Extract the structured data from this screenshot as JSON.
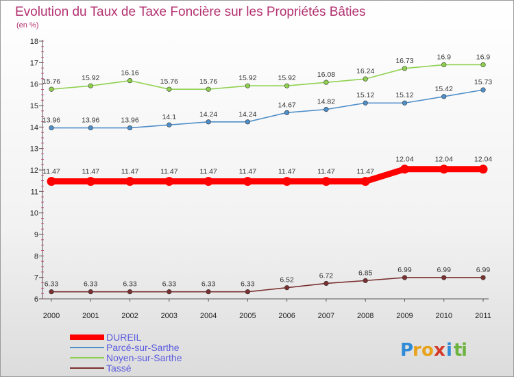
{
  "chart_data": {
    "type": "line",
    "title": "Evolution du Taux de Taxe Foncière sur les Propriétés Bâties",
    "subtitle": "(en %)",
    "x": [
      "2000",
      "2001",
      "2002",
      "2003",
      "2004",
      "2005",
      "2006",
      "2007",
      "2008",
      "2009",
      "2010",
      "2011"
    ],
    "yticks": [
      "6",
      "7",
      "8",
      "9",
      "10",
      "11",
      "12",
      "13",
      "14",
      "15",
      "16",
      "17",
      "18"
    ],
    "ylim": [
      6,
      18
    ],
    "grid": false,
    "legend_position": "bottom-left",
    "series": [
      {
        "name": "DUREIL",
        "color": "#ff0000",
        "values": [
          11.47,
          11.47,
          11.47,
          11.47,
          11.47,
          11.47,
          11.47,
          11.47,
          11.47,
          12.04,
          12.04,
          12.04
        ],
        "labels": [
          "11.47",
          "11.47",
          "11.47",
          "11.47",
          "11.47",
          "11.47",
          "11.47",
          "11.47",
          "11.47",
          "12.04",
          "12.04",
          "12.04"
        ]
      },
      {
        "name": "Parcé-sur-Sarthe",
        "color": "#4f8fc9",
        "values": [
          13.96,
          13.96,
          13.96,
          14.1,
          14.24,
          14.24,
          14.67,
          14.82,
          15.12,
          15.12,
          15.42,
          15.73
        ],
        "labels": [
          "13.96",
          "13.96",
          "13.96",
          "14.1",
          "14.24",
          "14.24",
          "14.67",
          "14.82",
          "15.12",
          "15.12",
          "15.42",
          "15.73"
        ]
      },
      {
        "name": "Noyen-sur-Sarthe",
        "color": "#8fd14f",
        "values": [
          15.76,
          15.92,
          16.16,
          15.76,
          15.76,
          15.92,
          15.92,
          16.08,
          16.24,
          16.73,
          16.9,
          16.9
        ],
        "labels": [
          "15.76",
          "15.92",
          "16.16",
          "15.76",
          "15.76",
          "15.92",
          "15.92",
          "16.08",
          "16.24",
          "16.73",
          "16.9",
          "16.9"
        ]
      },
      {
        "name": "Tassé",
        "color": "#7a3030",
        "values": [
          6.33,
          6.33,
          6.33,
          6.33,
          6.33,
          6.33,
          6.52,
          6.72,
          6.85,
          6.99,
          6.99,
          6.99
        ],
        "labels": [
          "6.33",
          "6.33",
          "6.33",
          "6.33",
          "6.33",
          "6.33",
          "6.52",
          "6.72",
          "6.85",
          "6.99",
          "6.99",
          "6.99"
        ]
      }
    ]
  },
  "legend": {
    "text_color": "#5a5ae0"
  },
  "logo": {
    "letters": [
      "P",
      "r",
      "o",
      "x",
      "i",
      "t",
      "i"
    ],
    "colors": [
      "#2f8bd8",
      "#e8a21a",
      "#e8a21a",
      "#d43a2a",
      "#2f8bd8",
      "#6cb33f",
      "#6cb33f"
    ]
  }
}
